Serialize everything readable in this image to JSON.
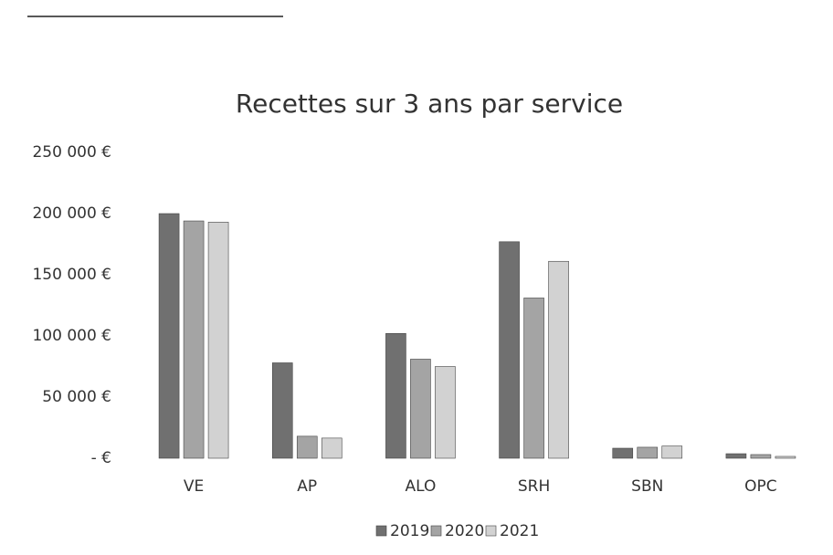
{
  "chart_data": {
    "type": "bar",
    "title": "Recettes sur 3 ans par service",
    "categories": [
      "VE",
      "AP",
      "ALO",
      "SRH",
      "SBN",
      "OPC"
    ],
    "series": [
      {
        "name": "2019",
        "color": "#707070",
        "values": [
          200000,
          78000,
          102000,
          177000,
          8200,
          3700
        ]
      },
      {
        "name": "2020",
        "color": "#a4a4a4",
        "values": [
          194000,
          18000,
          81000,
          131000,
          9000,
          3000
        ]
      },
      {
        "name": "2021",
        "color": "#d2d2d2",
        "values": [
          193000,
          16500,
          75000,
          161000,
          10000,
          1500
        ]
      }
    ],
    "ylim": [
      0,
      250000
    ],
    "yticks": [
      {
        "value": 0,
        "label": "-  €"
      },
      {
        "value": 50000,
        "label": "50 000 €"
      },
      {
        "value": 100000,
        "label": "100 000 €"
      },
      {
        "value": 150000,
        "label": "150 000 €"
      },
      {
        "value": 200000,
        "label": "200 000 €"
      },
      {
        "value": 250000,
        "label": "250 000 €"
      }
    ],
    "grid": false,
    "legend": "bottom"
  }
}
